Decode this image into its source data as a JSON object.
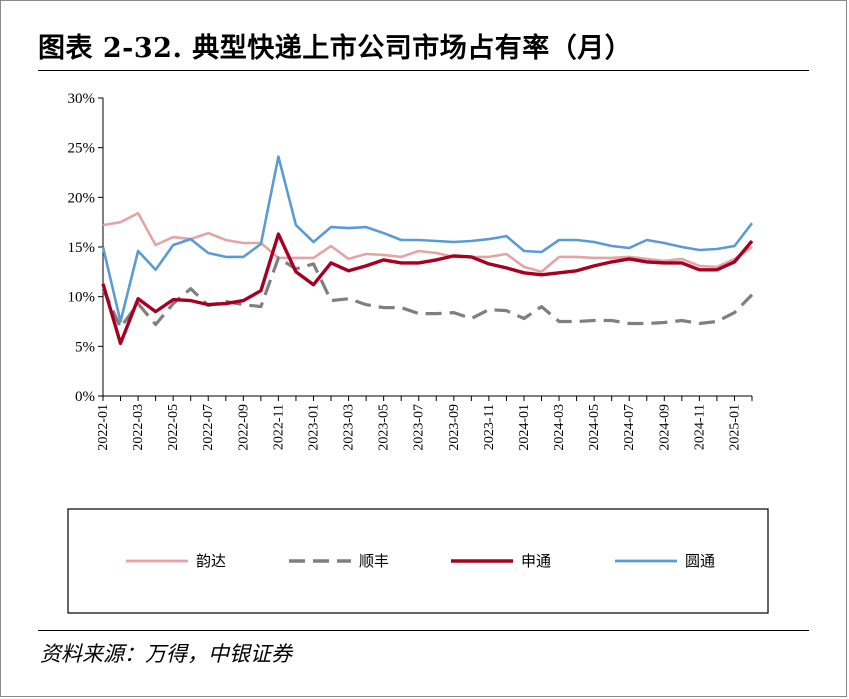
{
  "title": "图表 2-32. 典型快递上市公司市场占有率（月）",
  "source": "资料来源：万得，中银证券",
  "chart_data": {
    "type": "line",
    "ylim": [
      0,
      30
    ],
    "yticks": [
      "0%",
      "5%",
      "10%",
      "15%",
      "20%",
      "25%",
      "30%"
    ],
    "x": [
      "2022-01",
      "2022-02",
      "2022-03",
      "2022-04",
      "2022-05",
      "2022-06",
      "2022-07",
      "2022-08",
      "2022-09",
      "2022-10",
      "2022-11",
      "2022-12",
      "2023-01",
      "2023-02",
      "2023-03",
      "2023-04",
      "2023-05",
      "2023-06",
      "2023-07",
      "2023-08",
      "2023-09",
      "2023-10",
      "2023-11",
      "2023-12",
      "2024-01",
      "2024-02",
      "2024-03",
      "2024-04",
      "2024-05",
      "2024-06",
      "2024-07",
      "2024-08",
      "2024-09",
      "2024-10",
      "2024-11",
      "2024-12",
      "2025-01",
      "2025-02"
    ],
    "xtick_labels": [
      "2022-01",
      "2022-03",
      "2022-05",
      "2022-07",
      "2022-09",
      "2022-11",
      "2023-01",
      "2023-03",
      "2023-05",
      "2023-07",
      "2023-09",
      "2023-11",
      "2024-01",
      "2024-03",
      "2024-05",
      "2024-07",
      "2024-09",
      "2024-11",
      "2025-01"
    ],
    "legend_position": "bottom",
    "series": [
      {
        "name": "韵达",
        "color": "#e6a3a6",
        "dash": "solid",
        "values": [
          17.2,
          17.5,
          18.4,
          15.2,
          16.0,
          15.8,
          16.4,
          15.7,
          15.4,
          15.4,
          13.9,
          13.9,
          13.9,
          15.1,
          13.8,
          14.3,
          14.2,
          14.0,
          14.6,
          14.4,
          14.0,
          14.0,
          14.0,
          14.3,
          13.0,
          12.5,
          14.0,
          14.0,
          13.9,
          13.9,
          14.0,
          13.8,
          13.6,
          13.8,
          13.1,
          13.0,
          13.8,
          15.0
        ]
      },
      {
        "name": "顺丰",
        "color": "#7f7f7f",
        "dash": "dashed",
        "values": [
          10.8,
          6.9,
          9.3,
          7.2,
          9.3,
          10.8,
          9.1,
          9.5,
          9.2,
          9.0,
          13.9,
          12.8,
          13.3,
          9.6,
          9.8,
          9.2,
          8.9,
          8.9,
          8.3,
          8.3,
          8.4,
          7.8,
          8.7,
          8.6,
          7.8,
          9.0,
          7.5,
          7.5,
          7.6,
          7.6,
          7.3,
          7.3,
          7.4,
          7.6,
          7.3,
          7.5,
          8.4,
          10.2
        ]
      },
      {
        "name": "申通",
        "color": "#a50021",
        "dash": "solid",
        "values": [
          11.3,
          5.3,
          9.8,
          8.5,
          9.7,
          9.6,
          9.2,
          9.3,
          9.6,
          10.6,
          16.3,
          12.5,
          11.2,
          13.4,
          12.6,
          13.1,
          13.7,
          13.4,
          13.4,
          13.7,
          14.1,
          14.0,
          13.3,
          12.9,
          12.4,
          12.2,
          12.4,
          12.6,
          13.1,
          13.5,
          13.8,
          13.5,
          13.4,
          13.4,
          12.7,
          12.7,
          13.5,
          15.6
        ]
      },
      {
        "name": "圆通",
        "color": "#5b9bd5",
        "dash": "solid",
        "values": [
          15.0,
          7.5,
          14.6,
          12.7,
          15.2,
          15.8,
          14.4,
          14.0,
          14.0,
          15.3,
          24.1,
          17.2,
          15.5,
          17.0,
          16.9,
          17.0,
          16.4,
          15.7,
          15.7,
          15.6,
          15.5,
          15.6,
          15.8,
          16.1,
          14.6,
          14.5,
          15.7,
          15.7,
          15.5,
          15.1,
          14.9,
          15.7,
          15.4,
          15.0,
          14.7,
          14.8,
          15.1,
          17.4
        ]
      }
    ]
  }
}
